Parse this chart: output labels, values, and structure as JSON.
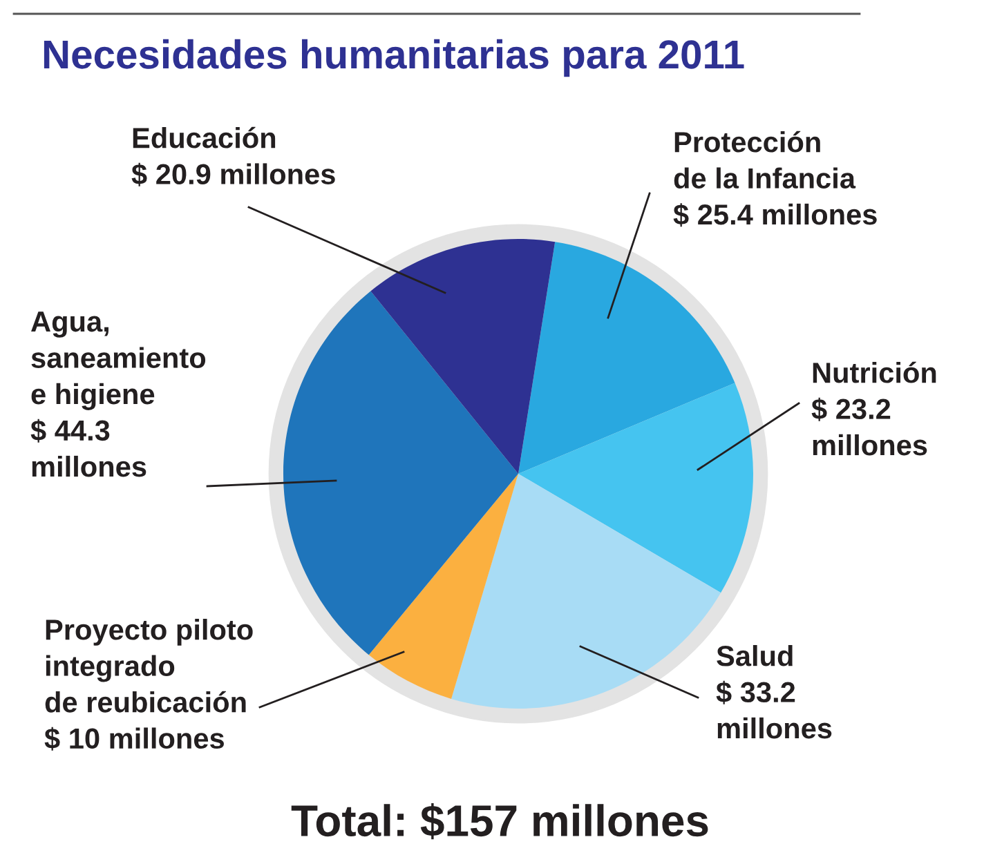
{
  "chart_data": {
    "type": "pie",
    "title": "Necesidades humanitarias para 2011",
    "categories": [
      "Protección\nde la Infancia",
      "Nutrición",
      "Salud",
      "Proyecto piloto\nintegrado\nde reubicación",
      "Agua,\nsaneamiento\ne higiene",
      "Educación"
    ],
    "values": [
      25.4,
      23.2,
      33.2,
      10,
      44.3,
      20.9
    ],
    "value_labels": [
      "$ 25.4 millones",
      "$ 23.2\nmillones",
      "$ 33.2\nmillones",
      "$ 10 millones",
      "$ 44.3\nmillones",
      "$ 20.9 millones"
    ],
    "colors": [
      "#29a8e0",
      "#45c4f0",
      "#a8dcf5",
      "#fbb040",
      "#1f75bb",
      "#2e3192"
    ],
    "annotations": [
      "Total: $157 millones"
    ]
  }
}
